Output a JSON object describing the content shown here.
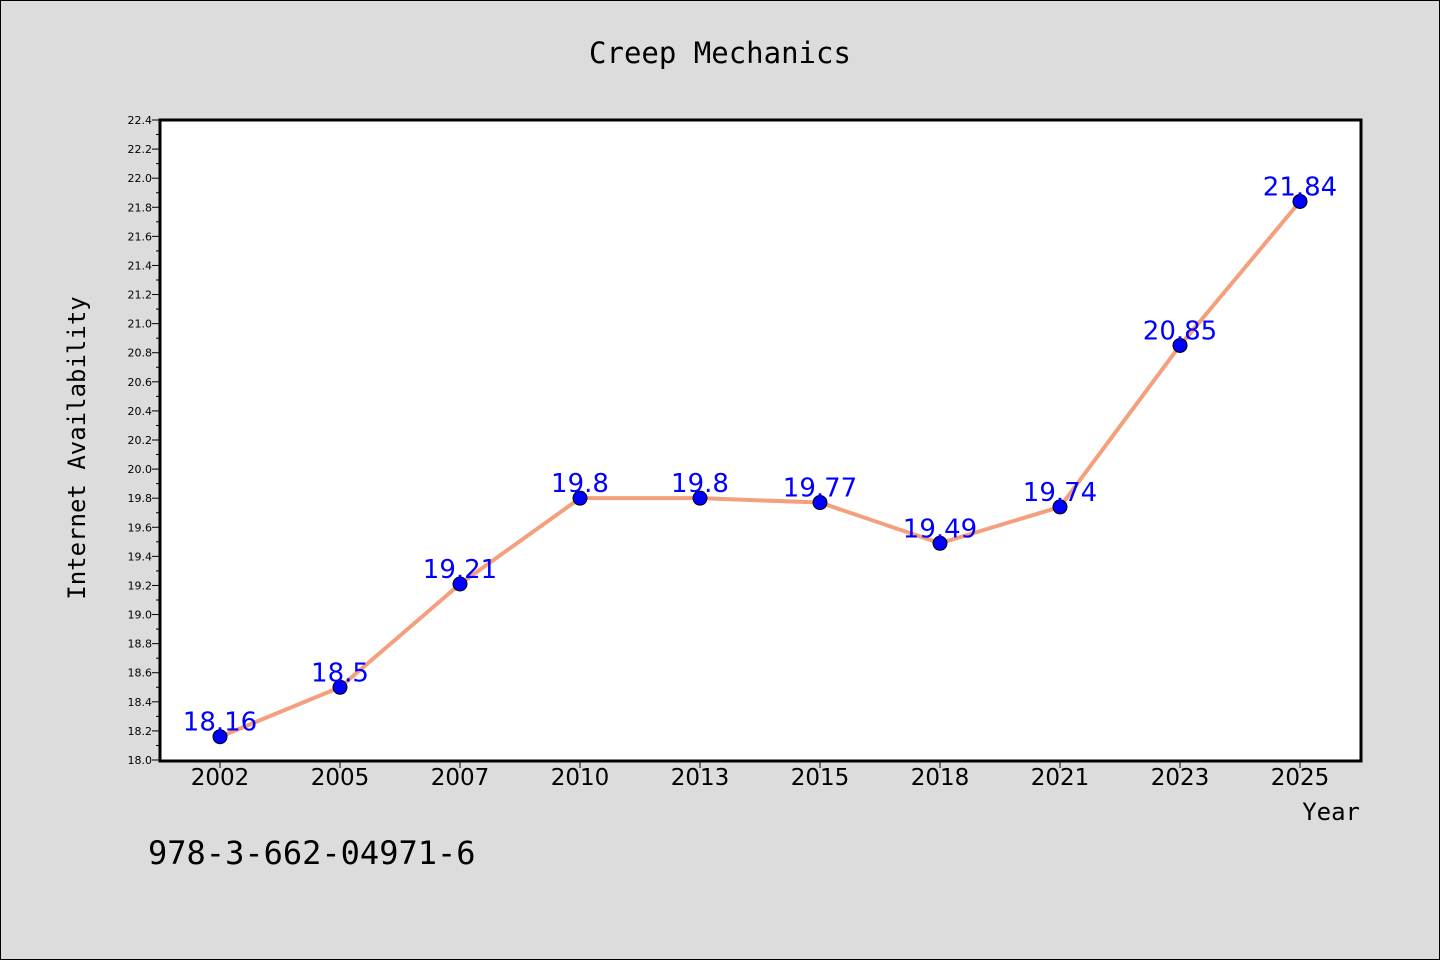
{
  "chart_data": {
    "type": "line",
    "title": "Creep Mechanics",
    "xlabel": "Year",
    "ylabel": "Internet Availability",
    "categories": [
      "2002",
      "2005",
      "2007",
      "2010",
      "2013",
      "2015",
      "2018",
      "2021",
      "2023",
      "2025"
    ],
    "series": [
      {
        "values": [
          18.16,
          18.5,
          19.21,
          19.8,
          19.8,
          19.77,
          19.49,
          19.74,
          20.85,
          21.84
        ],
        "labels": [
          "18.16",
          "18.5",
          "19.21",
          "19.8",
          "19.8",
          "19.77",
          "19.49",
          "19.74",
          "20.85",
          "21.84"
        ],
        "line_color": "#f4a07e",
        "marker_color": "#0000ff"
      }
    ],
    "ylim": [
      18.0,
      22.4
    ],
    "yticks": [
      "18.0",
      "18.2",
      "18.4",
      "18.6",
      "18.8",
      "19.0",
      "19.2",
      "19.4",
      "19.6",
      "19.8",
      "20.0",
      "20.2",
      "20.4",
      "20.6",
      "20.8",
      "21.0",
      "21.2",
      "21.4",
      "21.6",
      "21.8",
      "22.0",
      "22.2",
      "22.4"
    ],
    "grid": false,
    "legend": "none"
  },
  "annotation": {
    "isbn": "978-3-662-04971-6"
  },
  "colors": {
    "background": "#dcdcdc",
    "plot_area": "#ffffff",
    "label_color": "#0000ff"
  }
}
